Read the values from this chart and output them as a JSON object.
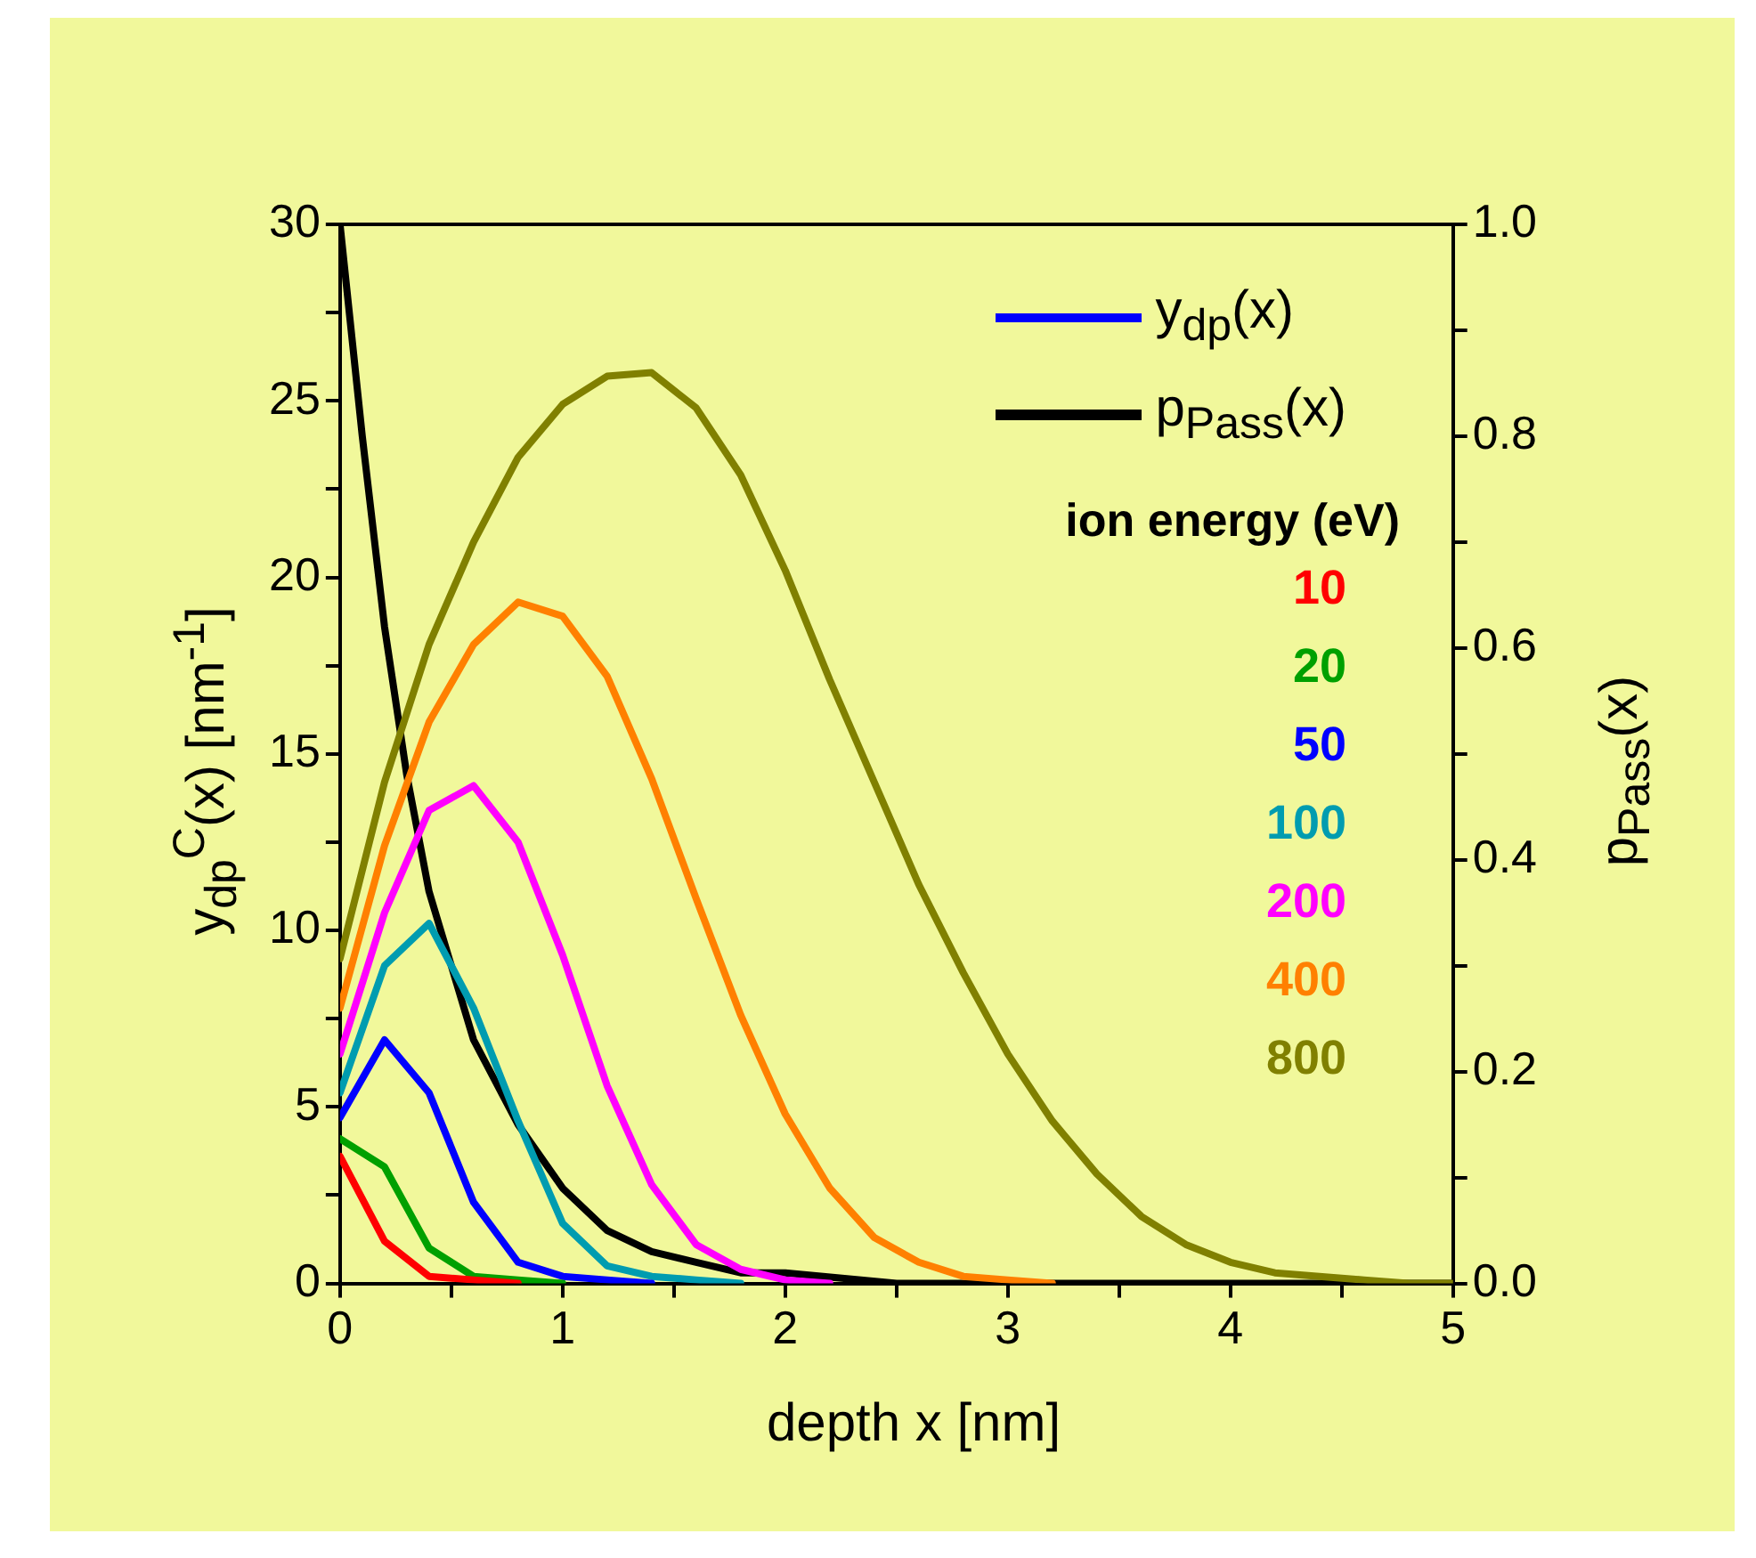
{
  "chart_data": {
    "type": "line",
    "xlabel": "depth x [nm]",
    "ylabel": "y$_{dp}$$^{C}$(x) [nm$^{-1}$]",
    "y2label": "p$_{Pass}$(x)",
    "legend_title": "ion energy (eV)",
    "annotations": [
      "y$_{dp}$(x)"
    ],
    "x": [
      0,
      0.2,
      0.4,
      0.6,
      0.8,
      1.0,
      1.2,
      1.4,
      1.6,
      1.8,
      2.0,
      2.2,
      2.4,
      2.6,
      2.8,
      3.0,
      3.2,
      3.4,
      3.6,
      3.8,
      4.0,
      4.2,
      4.4,
      4.6,
      4.8,
      5.0
    ],
    "xlim": [
      0,
      5
    ],
    "xticks": [
      0,
      {
        "value": 0.5,
        "label": null
      },
      1,
      {
        "value": 1.5,
        "label": null
      },
      2,
      {
        "value": 2.5,
        "label": null
      },
      3,
      {
        "value": 3.5,
        "label": null
      },
      4,
      {
        "value": 4.5,
        "label": null
      },
      5
    ],
    "ylim": [
      0,
      30
    ],
    "yticks": [
      0,
      {
        "value": 2.5,
        "label": null
      },
      5,
      {
        "value": 7.5,
        "label": null
      },
      10,
      {
        "value": 12.5,
        "label": null
      },
      15,
      {
        "value": 17.5,
        "label": null
      },
      20,
      {
        "value": 22.5,
        "label": null
      },
      25,
      {
        "value": 27.5,
        "label": null
      },
      30
    ],
    "y2lim": [
      0,
      1
    ],
    "y2ticks": [
      {
        "value": 0,
        "label": "0.0"
      },
      {
        "value": 0.1,
        "label": null
      },
      0.2,
      {
        "value": 0.3,
        "label": null
      },
      0.4,
      {
        "value": 0.5,
        "label": null
      },
      0.6,
      {
        "value": 0.7,
        "label": null
      },
      0.8,
      {
        "value": 0.9,
        "label": null
      },
      {
        "value": 1,
        "label": "1.0"
      }
    ],
    "grid": false,
    "legend": "top right",
    "marker": "none",
    "line_style": "solid",
    "series": [
      {
        "name": "10",
        "color": "#ff0000",
        "values": [
          3.6,
          1.2,
          0.2,
          0.1,
          0,
          null,
          null,
          null,
          null,
          null,
          null,
          null,
          null,
          null,
          null,
          null,
          null,
          null,
          null,
          null,
          null,
          null,
          null,
          null,
          null,
          null
        ]
      },
      {
        "name": "20",
        "color": "#00a000",
        "values": [
          4.1,
          3.3,
          1.0,
          0.2,
          0.1,
          0,
          null,
          null,
          null,
          null,
          null,
          null,
          null,
          null,
          null,
          null,
          null,
          null,
          null,
          null,
          null,
          null,
          null,
          null,
          null,
          null
        ]
      },
      {
        "name": "50",
        "color": "#0000ff",
        "values": [
          4.7,
          6.9,
          5.4,
          2.3,
          0.6,
          0.2,
          0.1,
          0,
          null,
          null,
          null,
          null,
          null,
          null,
          null,
          null,
          null,
          null,
          null,
          null,
          null,
          null,
          null,
          null,
          null,
          null
        ]
      },
      {
        "name": "100",
        "color": "#009cb0",
        "values": [
          5.4,
          9.0,
          10.2,
          7.8,
          4.6,
          1.7,
          0.5,
          0.2,
          0.1,
          0,
          null,
          null,
          null,
          null,
          null,
          null,
          null,
          null,
          null,
          null,
          null,
          null,
          null,
          null,
          null,
          null
        ]
      },
      {
        "name": "200",
        "color": "#ff00ff",
        "values": [
          6.5,
          10.5,
          13.4,
          14.1,
          12.5,
          9.3,
          5.6,
          2.8,
          1.1,
          0.4,
          0.1,
          0,
          null,
          null,
          null,
          null,
          null,
          null,
          null,
          null,
          null,
          null,
          null,
          null,
          null,
          null
        ]
      },
      {
        "name": "400",
        "color": "#ff8000",
        "values": [
          7.8,
          12.4,
          15.9,
          18.1,
          19.3,
          18.9,
          17.2,
          14.3,
          10.9,
          7.6,
          4.8,
          2.7,
          1.3,
          0.6,
          0.2,
          0.1,
          0,
          null,
          null,
          null,
          null,
          null,
          null,
          null,
          null,
          null
        ]
      },
      {
        "name": "800",
        "color": "#808000",
        "values": [
          9.2,
          14.2,
          18.1,
          21.0,
          23.4,
          24.9,
          25.7,
          25.8,
          24.8,
          22.9,
          20.2,
          17.1,
          14.2,
          11.3,
          8.8,
          6.5,
          4.6,
          3.1,
          1.9,
          1.1,
          0.6,
          0.3,
          0.2,
          0.1,
          0,
          0
        ]
      },
      {
        "name": "p$_{Pass}$(x)",
        "color": "#000000",
        "axis": "y2",
        "x": [
          0,
          0.1,
          0.2,
          0.3,
          0.4,
          0.6,
          0.8,
          1.0,
          1.2,
          1.4,
          1.6,
          1.8,
          2.0,
          2.5,
          3,
          4,
          5
        ],
        "values": [
          1.0,
          0.8,
          0.62,
          0.48,
          0.37,
          0.23,
          0.15,
          0.09,
          0.05,
          0.03,
          0.02,
          0.01,
          0.01,
          0,
          0,
          0,
          0
        ]
      }
    ]
  }
}
